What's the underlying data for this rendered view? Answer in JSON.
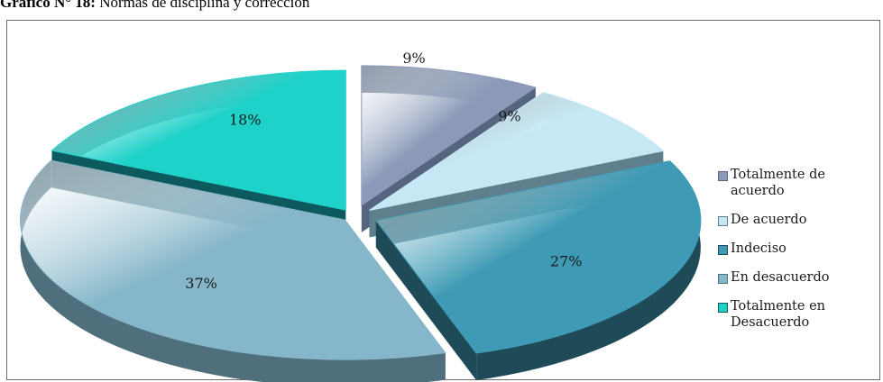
{
  "caption": {
    "prefix": "Gráfico N° 18:",
    "text": " Normas de disciplina y corrección"
  },
  "chart_data": {
    "type": "pie",
    "title": "",
    "categories": [
      "Totalmente de acuerdo",
      "De acuerdo",
      "Indeciso",
      "En desacuerdo",
      "Totalmente en Desacuerdo"
    ],
    "legend_lines": [
      [
        "Totalmente de",
        "acuerdo"
      ],
      [
        "De acuerdo"
      ],
      [
        "Indeciso"
      ],
      [
        "En desacuerdo"
      ],
      [
        "Totalmente en",
        "Desacuerdo"
      ]
    ],
    "values": [
      9,
      9,
      27,
      37,
      18
    ],
    "labels": [
      "9%",
      "9%",
      "27%",
      "37%",
      "18%"
    ],
    "colors": [
      "#8a9ab8",
      "#c6e8f4",
      "#3f9bb5",
      "#85b6c9",
      "#1ed1c9"
    ],
    "side_colors": [
      "#56657f",
      "#5f7f8c",
      "#1f4a57",
      "#4f6f7d",
      "#0d5a5e"
    ],
    "style": "3d-exploded",
    "legend_position": "right"
  }
}
